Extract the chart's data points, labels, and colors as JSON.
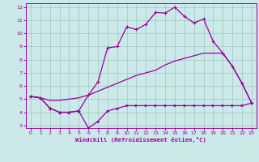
{
  "xlabel": "Windchill (Refroidissement éolien,°C)",
  "background_color": "#cce8e8",
  "grid_color": "#99ccbb",
  "line_color": "#990099",
  "xlim": [
    -0.5,
    23.5
  ],
  "ylim": [
    2.8,
    12.3
  ],
  "xticks": [
    0,
    1,
    2,
    3,
    4,
    5,
    6,
    7,
    8,
    9,
    10,
    11,
    12,
    13,
    14,
    15,
    16,
    17,
    18,
    19,
    20,
    21,
    22,
    23
  ],
  "yticks": [
    3,
    4,
    5,
    6,
    7,
    8,
    9,
    10,
    11,
    12
  ],
  "line_peaked_x": [
    0,
    1,
    2,
    3,
    4,
    5,
    6,
    7,
    8,
    9,
    10,
    11,
    12,
    13,
    14,
    15,
    16,
    17,
    18,
    19,
    20,
    21,
    22,
    23
  ],
  "line_peaked_y": [
    5.2,
    5.1,
    4.3,
    4.0,
    4.0,
    4.1,
    5.3,
    6.3,
    8.9,
    9.0,
    10.5,
    10.3,
    10.7,
    11.6,
    11.55,
    12.0,
    11.3,
    10.8,
    11.1,
    9.4,
    8.5,
    7.5,
    6.2,
    4.7
  ],
  "line_diagonal_x": [
    0,
    1,
    2,
    3,
    4,
    5,
    6,
    7,
    8,
    9,
    10,
    11,
    12,
    13,
    14,
    15,
    16,
    17,
    18,
    19,
    20,
    21,
    22,
    23
  ],
  "line_diagonal_y": [
    5.2,
    5.1,
    4.9,
    4.9,
    5.0,
    5.1,
    5.3,
    5.6,
    5.9,
    6.2,
    6.5,
    6.8,
    7.0,
    7.2,
    7.6,
    7.9,
    8.1,
    8.3,
    8.5,
    8.5,
    8.5,
    7.5,
    6.2,
    4.7
  ],
  "line_low_x": [
    0,
    1,
    2,
    3,
    4,
    5,
    6,
    7,
    8,
    9,
    10,
    11,
    12,
    13,
    14,
    15,
    16,
    17,
    18,
    19,
    20,
    21,
    22,
    23
  ],
  "line_low_y": [
    5.2,
    5.1,
    4.3,
    4.0,
    4.0,
    4.1,
    2.8,
    3.3,
    4.1,
    4.3,
    4.5,
    4.5,
    4.5,
    4.5,
    4.5,
    4.5,
    4.5,
    4.5,
    4.5,
    4.5,
    4.5,
    4.5,
    4.5,
    4.7
  ]
}
